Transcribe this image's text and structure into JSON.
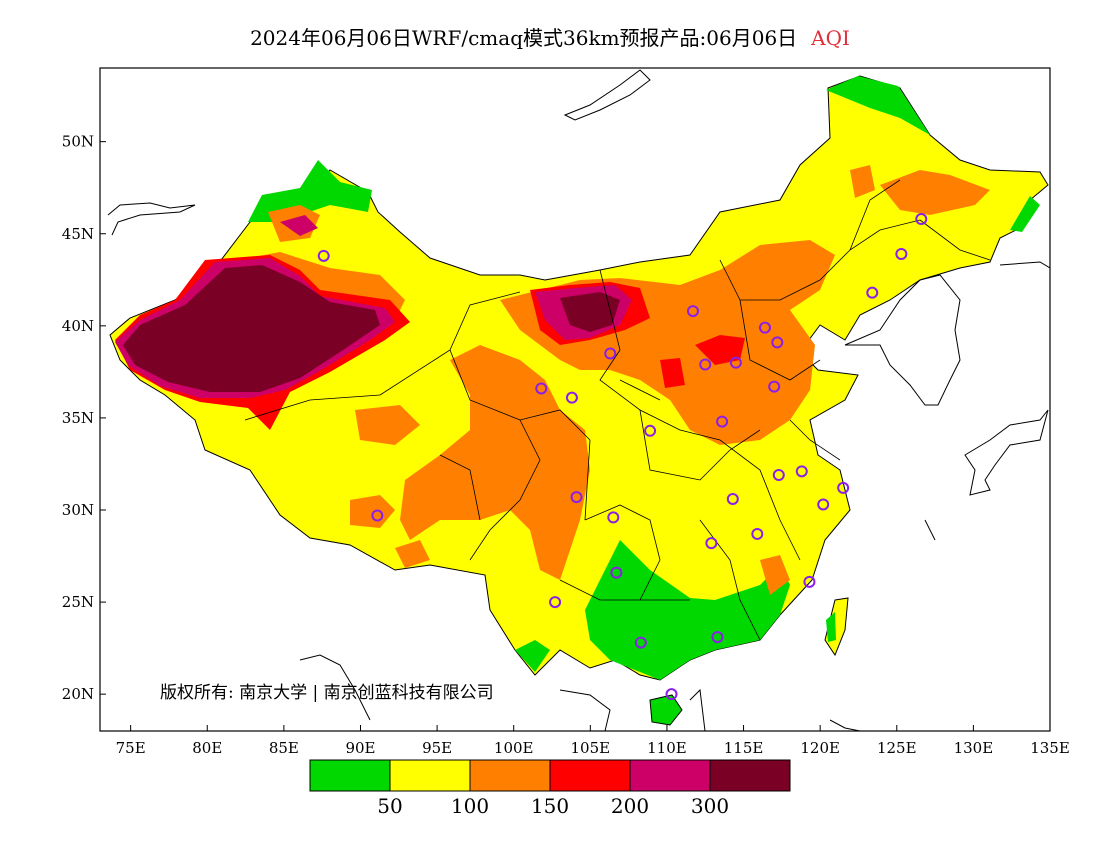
{
  "header": {
    "title": "2024年06月06日WRF/cmaq模式36km预报产品:06月06日",
    "metric": "AQI",
    "metric_color": "#e0303a"
  },
  "axes": {
    "x_ticks": [
      "75E",
      "80E",
      "85E",
      "90E",
      "95E",
      "100E",
      "105E",
      "110E",
      "115E",
      "120E",
      "125E",
      "130E",
      "135E"
    ],
    "y_ticks": [
      "50N",
      "45N",
      "40N",
      "35N",
      "30N",
      "25N",
      "20N"
    ],
    "lon_range": [
      73,
      135
    ],
    "lat_range": [
      18,
      54
    ]
  },
  "legend": {
    "colors": [
      "#00d800",
      "#ffff00",
      "#ff8000",
      "#ff0000",
      "#cc0066",
      "#7a0026"
    ],
    "labels": [
      "50",
      "100",
      "150",
      "200",
      "300"
    ]
  },
  "copyright": "版权所有: 南京大学 | 南京创蓝科技有限公司",
  "stations": [
    [
      87.6,
      43.8
    ],
    [
      91.1,
      29.7
    ],
    [
      101.8,
      36.6
    ],
    [
      103.8,
      36.1
    ],
    [
      106.3,
      38.5
    ],
    [
      111.7,
      40.8
    ],
    [
      112.5,
      37.9
    ],
    [
      114.5,
      38.0
    ],
    [
      116.4,
      39.9
    ],
    [
      117.2,
      39.1
    ],
    [
      117.0,
      36.7
    ],
    [
      113.6,
      34.8
    ],
    [
      108.9,
      34.3
    ],
    [
      104.1,
      30.7
    ],
    [
      106.5,
      29.6
    ],
    [
      106.7,
      26.6
    ],
    [
      102.7,
      25.0
    ],
    [
      108.3,
      22.8
    ],
    [
      113.3,
      23.1
    ],
    [
      110.3,
      20.0
    ],
    [
      112.9,
      28.2
    ],
    [
      115.9,
      28.7
    ],
    [
      114.3,
      30.6
    ],
    [
      117.3,
      31.9
    ],
    [
      118.8,
      32.1
    ],
    [
      120.2,
      30.3
    ],
    [
      121.5,
      31.2
    ],
    [
      119.3,
      26.1
    ],
    [
      123.4,
      41.8
    ],
    [
      125.3,
      43.9
    ],
    [
      126.6,
      45.8
    ]
  ]
}
